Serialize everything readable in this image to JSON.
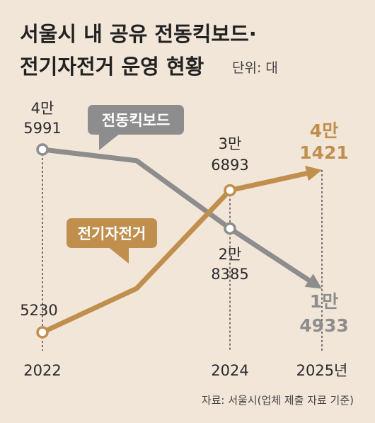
{
  "title_line1": "서울시 내 공유 전동킥보드·",
  "title_line2": "전기자전거 운영 현황",
  "unit": "단위: 대",
  "source": "자료: 서울시(업체 제출 자료 기준)",
  "colors": {
    "kickboard": "#8d8d8d",
    "bicycle": "#c08f4d",
    "background": "#f2e6d9"
  },
  "chart_data": {
    "type": "line",
    "x_categories": [
      "2022",
      "2024",
      "2025년"
    ],
    "ylim": [
      0,
      45000
    ],
    "grid": false,
    "series": [
      {
        "name": "전동킥보드",
        "x": [
          "2022",
          "2023",
          "2024",
          "2025년"
        ],
        "values": [
          45991,
          43500,
          28385,
          14933
        ],
        "labels": [
          {
            "index": 0,
            "line1": "4만",
            "line2": "5991"
          },
          {
            "index": 2,
            "line1": "2만",
            "line2": "8385"
          },
          {
            "index": 3,
            "line1": "1만",
            "line2": "4933"
          }
        ]
      },
      {
        "name": "전기자전거",
        "x": [
          "2022",
          "2023",
          "2024",
          "2025년"
        ],
        "values": [
          5230,
          15000,
          36893,
          41421
        ],
        "labels": [
          {
            "index": 0,
            "line1": "",
            "line2": "5230"
          },
          {
            "index": 2,
            "line1": "3만",
            "line2": "6893"
          },
          {
            "index": 3,
            "line1": "4만",
            "line2": "1421"
          }
        ]
      }
    ]
  }
}
